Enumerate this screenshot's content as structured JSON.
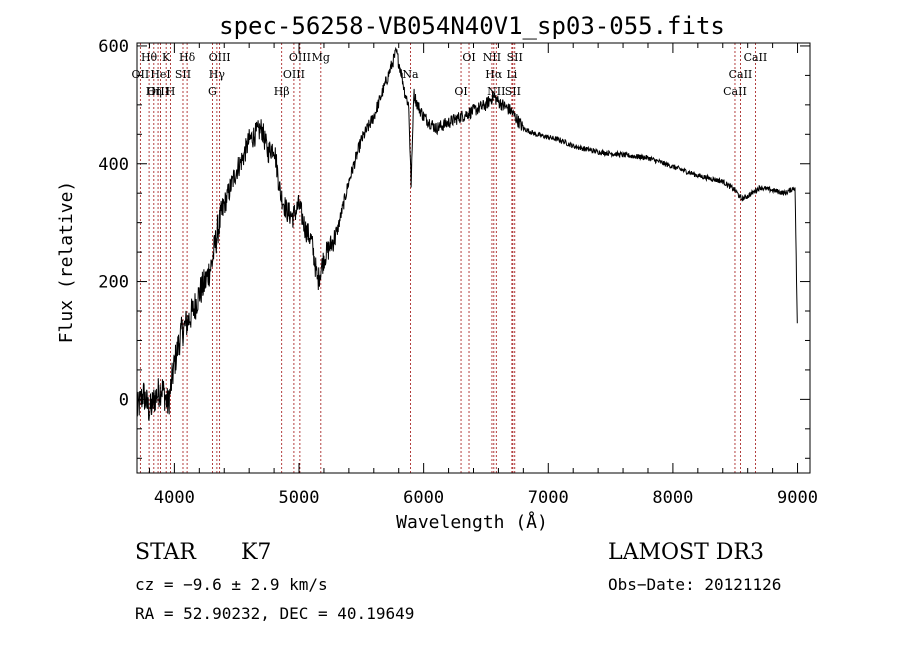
{
  "chart_data": {
    "type": "line",
    "title": "spec-56258-VB054N40V1_sp03-055.fits",
    "xlabel": "Wavelength (Å)",
    "ylabel": "Flux (relative)",
    "xlim": [
      3700,
      9100
    ],
    "ylim": [
      -125,
      605
    ],
    "xticks": [
      4000,
      5000,
      6000,
      7000,
      8000,
      9000
    ],
    "yticks": [
      0,
      200,
      400,
      600
    ],
    "series": [
      {
        "name": "flux",
        "x": [
          3700,
          3750,
          3800,
          3850,
          3900,
          3950,
          4000,
          4050,
          4100,
          4150,
          4200,
          4250,
          4300,
          4350,
          4400,
          4450,
          4500,
          4550,
          4600,
          4650,
          4700,
          4750,
          4800,
          4850,
          4900,
          4950,
          5000,
          5050,
          5100,
          5150,
          5200,
          5250,
          5300,
          5400,
          5500,
          5600,
          5700,
          5780,
          5820,
          5850,
          5880,
          5900,
          5920,
          5950,
          6000,
          6050,
          6100,
          6200,
          6300,
          6400,
          6500,
          6560,
          6600,
          6700,
          6800,
          6900,
          7000,
          7100,
          7200,
          7400,
          7600,
          7800,
          8000,
          8200,
          8400,
          8500,
          8550,
          8600,
          8700,
          8800,
          8900,
          8980,
          9000
        ],
        "y": [
          -20,
          10,
          -20,
          5,
          20,
          -10,
          60,
          110,
          130,
          150,
          180,
          200,
          230,
          290,
          330,
          360,
          390,
          410,
          440,
          450,
          460,
          420,
          430,
          350,
          320,
          310,
          330,
          290,
          270,
          200,
          240,
          260,
          280,
          370,
          440,
          480,
          540,
          590,
          555,
          520,
          500,
          360,
          520,
          500,
          480,
          470,
          460,
          470,
          480,
          490,
          500,
          515,
          505,
          490,
          460,
          450,
          445,
          440,
          430,
          420,
          415,
          410,
          395,
          380,
          370,
          355,
          340,
          345,
          360,
          355,
          350,
          360,
          100
        ]
      }
    ],
    "lines": [
      {
        "label": "Hθ",
        "x": 3797
      },
      {
        "label": "OII",
        "x": 3727
      },
      {
        "label": "OIII",
        "x": 3869
      },
      {
        "label": "K",
        "x": 3934
      },
      {
        "label": "HeI",
        "x": 3889
      },
      {
        "label": "Hη",
        "x": 3835
      },
      {
        "label": "Hδ",
        "x": 4102
      },
      {
        "label": "SII",
        "x": 4069
      },
      {
        "label": "H",
        "x": 3969
      },
      {
        "label": "OIII",
        "x": 4363
      },
      {
        "label": "Hγ",
        "x": 4341
      },
      {
        "label": "G",
        "x": 4305
      },
      {
        "label": "OIII",
        "x": 5007
      },
      {
        "label": "OIII",
        "x": 4959
      },
      {
        "label": "Hβ",
        "x": 4861
      },
      {
        "label": "Mg",
        "x": 5175
      },
      {
        "label": "Na",
        "x": 5894
      },
      {
        "label": "OI",
        "x": 6300
      },
      {
        "label": "OI",
        "x": 6364
      },
      {
        "label": "Hα",
        "x": 6563
      },
      {
        "label": "SII",
        "x": 6716
      },
      {
        "label": "NII",
        "x": 6548
      },
      {
        "label": "Li",
        "x": 6708
      },
      {
        "label": "NII",
        "x": 6583
      },
      {
        "label": "SII",
        "x": 6731
      },
      {
        "label": "CaII",
        "x": 8542
      },
      {
        "label": "CaII",
        "x": 8498
      },
      {
        "label": "CaII",
        "x": 8662
      }
    ]
  },
  "info": {
    "object_class": "STAR",
    "subclass": "K7",
    "cz": "cz = −9.6 ± 2.9 km/s",
    "coords": "RA =  52.90232, DEC =  40.19649",
    "survey": "LAMOST DR3",
    "obs_date": "Obs−Date: 20121126"
  }
}
